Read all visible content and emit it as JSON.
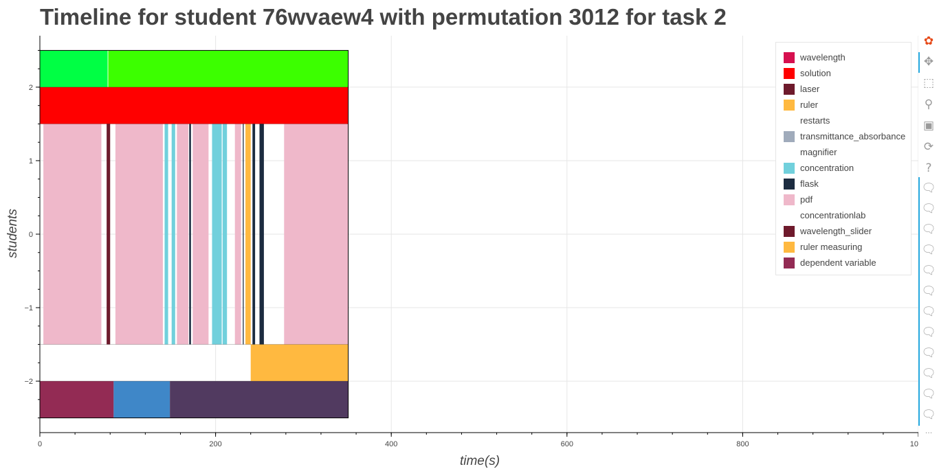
{
  "chart_data": {
    "type": "timeline",
    "title": "Timeline for student 76wvaew4 with permutation 3012 for task 2",
    "xlabel": "time(s)",
    "ylabel": "students",
    "xlim": [
      0,
      1000
    ],
    "ylim": [
      -2.7,
      2.7
    ],
    "x_ticks": [
      0,
      200,
      400,
      600,
      800,
      1000
    ],
    "x_tick_labels": [
      "0",
      "200",
      "400",
      "600",
      "800",
      "1000"
    ],
    "y_ticks": [
      -2,
      -1,
      0,
      1,
      2
    ],
    "y_tick_labels": [
      "−2",
      "−1",
      "0",
      "1",
      "2"
    ],
    "grid": true,
    "legend_position": "top-right",
    "legend": [
      {
        "label": "wavelength",
        "color": "#d6104f"
      },
      {
        "label": "solution",
        "color": "#ff0000"
      },
      {
        "label": "laser",
        "color": "#6e1a2c"
      },
      {
        "label": "ruler",
        "color": "#ffb940"
      },
      {
        "label": "restarts",
        "color": "#ffffff"
      },
      {
        "label": "transmittance_absorbance",
        "color": "#a0abbb"
      },
      {
        "label": "magnifier",
        "color": "#ffffff"
      },
      {
        "label": "concentration",
        "color": "#71d0dc"
      },
      {
        "label": "flask",
        "color": "#1c2c40"
      },
      {
        "label": "pdf",
        "color": "#efb8ca"
      },
      {
        "label": "concentrationlab",
        "color": "#ffffff"
      },
      {
        "label": "wavelength_slider",
        "color": "#6e1a2c"
      },
      {
        "label": "ruler measuring",
        "color": "#ffb940"
      },
      {
        "label": "dependent variable",
        "color": "#932b54"
      }
    ],
    "bands": [
      {
        "y0": 2.0,
        "y1": 2.5,
        "segments": [
          {
            "start": 0,
            "end": 77,
            "color": "#00ff44"
          },
          {
            "start": 77,
            "end": 78,
            "color": "#aaffaa"
          },
          {
            "start": 78,
            "end": 351,
            "color": "#3cff00"
          }
        ]
      },
      {
        "y0": 1.5,
        "y1": 2.0,
        "segments": [
          {
            "start": 0,
            "end": 351,
            "color": "#ff0000"
          }
        ]
      },
      {
        "y0": -1.5,
        "y1": 1.5,
        "segments": [
          {
            "start": 4,
            "end": 70,
            "color": "#efb8ca"
          },
          {
            "start": 76,
            "end": 80,
            "color": "#6e1a2c"
          },
          {
            "start": 86,
            "end": 140,
            "color": "#efb8ca"
          },
          {
            "start": 142,
            "end": 146,
            "color": "#71d0dc"
          },
          {
            "start": 150,
            "end": 154,
            "color": "#71d0dc"
          },
          {
            "start": 156,
            "end": 169,
            "color": "#efb8ca"
          },
          {
            "start": 170,
            "end": 172,
            "color": "#1c2c40"
          },
          {
            "start": 174,
            "end": 192,
            "color": "#efb8ca"
          },
          {
            "start": 196,
            "end": 207,
            "color": "#71d0dc"
          },
          {
            "start": 208,
            "end": 213,
            "color": "#71d0dc"
          },
          {
            "start": 222,
            "end": 229,
            "color": "#efb8ca"
          },
          {
            "start": 231,
            "end": 232,
            "color": "#1c2c40"
          },
          {
            "start": 234,
            "end": 240,
            "color": "#ffb940"
          },
          {
            "start": 242,
            "end": 245,
            "color": "#1c2c40"
          },
          {
            "start": 250,
            "end": 255,
            "color": "#1c2c40"
          },
          {
            "start": 278,
            "end": 351,
            "color": "#efb8ca"
          }
        ]
      },
      {
        "y0": -2.0,
        "y1": -1.5,
        "segments": [
          {
            "start": 240,
            "end": 351,
            "color": "#ffb940"
          }
        ]
      },
      {
        "y0": -2.5,
        "y1": -2.0,
        "segments": [
          {
            "start": 0,
            "end": 84,
            "color": "#932b54"
          },
          {
            "start": 84,
            "end": 148,
            "color": "#3f87c8"
          },
          {
            "start": 148,
            "end": 351,
            "color": "#513a60"
          }
        ]
      }
    ],
    "frame": {
      "x_end": 351,
      "y_top": 2.5,
      "y_bottom": -2.5
    }
  },
  "toolbar": {
    "logo": "bokeh-logo-icon",
    "tools": [
      "pan-icon",
      "box-zoom-icon",
      "wheel-zoom-icon",
      "save-icon",
      "reset-icon",
      "help-icon"
    ],
    "hover_tool_count": 12,
    "more": "···"
  }
}
